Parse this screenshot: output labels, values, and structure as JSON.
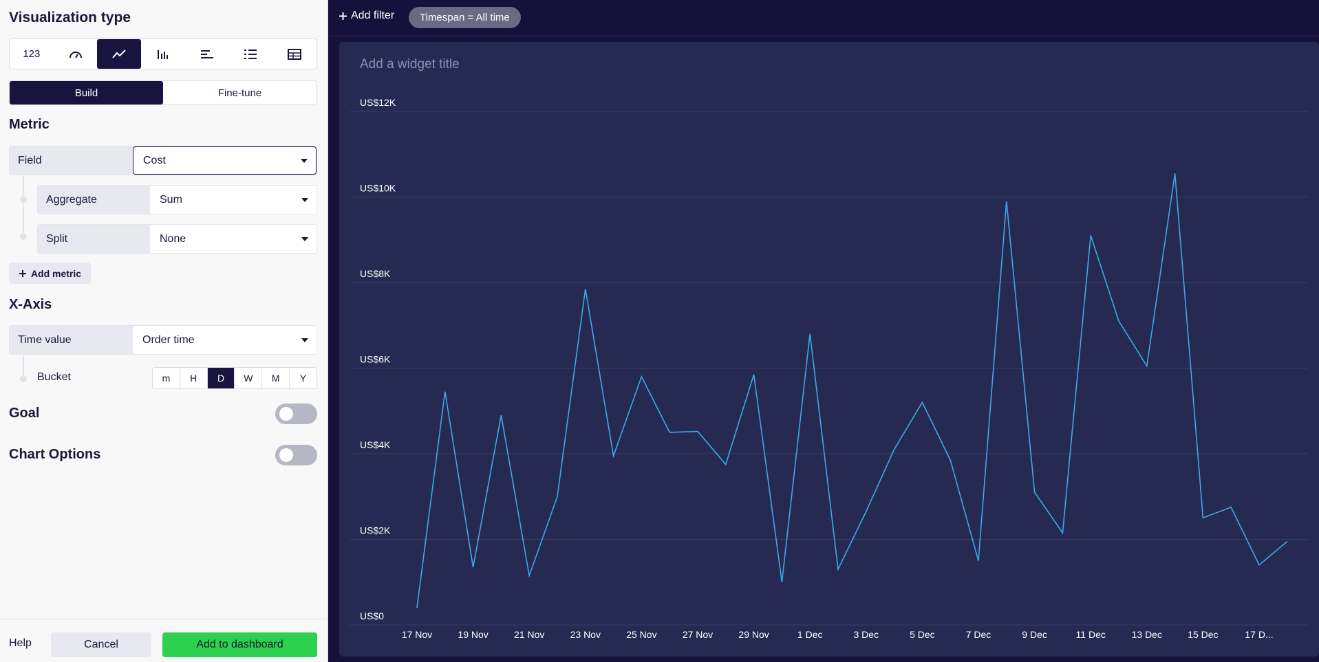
{
  "sidebar": {
    "visualization_title": "Visualization type",
    "viz_types": [
      {
        "name": "number",
        "label": "123",
        "active": false
      },
      {
        "name": "gauge-icon",
        "active": false
      },
      {
        "name": "line-chart-icon",
        "active": true
      },
      {
        "name": "column-chart-icon",
        "active": false
      },
      {
        "name": "bar-chart-icon",
        "active": false
      },
      {
        "name": "list-icon",
        "active": false
      },
      {
        "name": "table-icon",
        "active": false
      }
    ],
    "modes": {
      "build": "Build",
      "finetune": "Fine-tune",
      "active": "build"
    },
    "metric": {
      "title": "Metric",
      "field_label": "Field",
      "field_value": "Cost",
      "aggregate_label": "Aggregate",
      "aggregate_value": "Sum",
      "split_label": "Split",
      "split_value": "None",
      "add_metric": "Add metric"
    },
    "xaxis": {
      "title": "X-Axis",
      "time_label": "Time value",
      "time_value": "Order time",
      "bucket_label": "Bucket",
      "buckets": [
        "m",
        "H",
        "D",
        "W",
        "M",
        "Y"
      ],
      "active_bucket": "D"
    },
    "goal": {
      "title": "Goal",
      "on": false
    },
    "chart_options": {
      "title": "Chart Options",
      "on": false
    },
    "footer": {
      "help": "Help",
      "cancel": "Cancel",
      "add": "Add to dashboard"
    }
  },
  "topbar": {
    "add_filter": "Add filter",
    "chip": "Timespan = All time"
  },
  "widget": {
    "title_placeholder": "Add a widget title"
  },
  "chart_data": {
    "type": "line",
    "title": "",
    "xlabel": "",
    "ylabel": "",
    "ylim": [
      0,
      12000
    ],
    "yticks": [
      "US$0",
      "US$2K",
      "US$4K",
      "US$6K",
      "US$8K",
      "US$10K",
      "US$12K"
    ],
    "xticks": [
      "17 Nov",
      "19 Nov",
      "21 Nov",
      "23 Nov",
      "25 Nov",
      "27 Nov",
      "29 Nov",
      "1 Dec",
      "3 Dec",
      "5 Dec",
      "7 Dec",
      "9 Dec",
      "11 Dec",
      "13 Dec",
      "15 Dec",
      "17 D..."
    ],
    "line_color": "#3da9e8",
    "grid": true,
    "series": [
      {
        "x": [
          "17 Nov",
          "18 Nov",
          "19 Nov",
          "20 Nov",
          "21 Nov",
          "22 Nov",
          "23 Nov",
          "24 Nov",
          "25 Nov",
          "26 Nov",
          "27 Nov",
          "28 Nov",
          "29 Nov",
          "30 Nov",
          "1 Dec",
          "2 Dec",
          "3 Dec",
          "4 Dec",
          "5 Dec",
          "6 Dec",
          "7 Dec",
          "8 Dec",
          "9 Dec",
          "10 Dec",
          "11 Dec",
          "12 Dec",
          "13 Dec",
          "14 Dec",
          "15 Dec",
          "16 Dec",
          "17 Dec",
          "18 Dec"
        ],
        "values": [
          400,
          5450,
          1350,
          4900,
          1150,
          3000,
          7850,
          3950,
          5800,
          4500,
          4520,
          3750,
          5850,
          1000,
          6800,
          1300,
          2650,
          4100,
          5200,
          3850,
          1500,
          9900,
          3100,
          2150,
          9100,
          7100,
          6050,
          10550,
          2500,
          2750,
          1400,
          1950
        ]
      }
    ]
  }
}
